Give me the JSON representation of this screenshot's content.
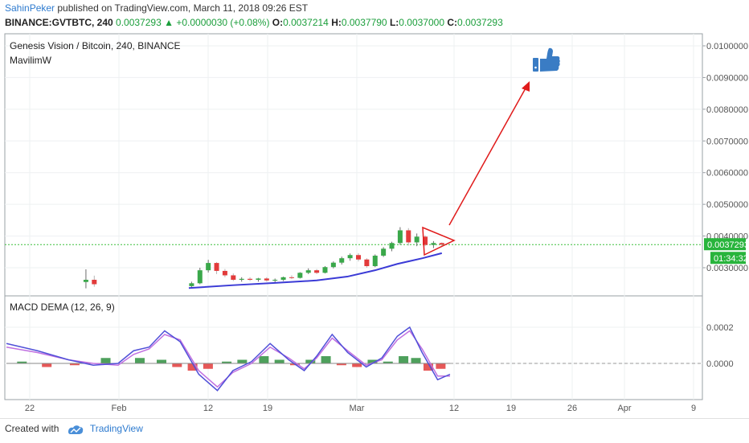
{
  "header": {
    "author": "SahinPeker",
    "published_text": " published on TradingView.com, March 11, 2018 09:26 EST"
  },
  "ticker": {
    "symbol": "BINANCE:GVTBTC, 240",
    "price": "0.0037293",
    "change": "+0.0000030 (+0.08%)",
    "o_label": "O:",
    "o": "0.0037214",
    "h_label": "H:",
    "h": "0.0037790",
    "l_label": "L:",
    "l": "0.0037000",
    "c_label": "C:",
    "c": "0.0037293"
  },
  "chart_data": {
    "type": "candlestick",
    "title": "Genesis Vision / Bitcoin, 240, BINANCE",
    "indicator": "MavilimW",
    "y_ticks": [
      "0.0100000",
      "0.0090000",
      "0.0080000",
      "0.0070000",
      "0.0060000",
      "0.0050000",
      "0.0040000",
      "0.0030000"
    ],
    "ylim": [
      0.0023,
      0.0102
    ],
    "x_ticks": [
      "22",
      "Feb",
      "12",
      "19",
      "Mar",
      "12",
      "19",
      "26",
      "Apr",
      "9"
    ],
    "last_price_label": "0.0037293",
    "countdown_label": "01:34:32",
    "close_series": [
      {
        "x": 0.2,
        "o": 0.00255,
        "h": 0.00295,
        "l": 0.00235,
        "c": 0.00262
      },
      {
        "x": 0.5,
        "o": 0.00262,
        "h": 0.00275,
        "l": 0.0024,
        "c": 0.00248
      },
      {
        "x": 4.0,
        "o": 0.00242,
        "h": 0.00256,
        "l": 0.00238,
        "c": 0.00251
      },
      {
        "x": 4.3,
        "o": 0.00251,
        "h": 0.003,
        "l": 0.00248,
        "c": 0.00292
      },
      {
        "x": 4.6,
        "o": 0.00292,
        "h": 0.00325,
        "l": 0.00285,
        "c": 0.00315
      },
      {
        "x": 4.9,
        "o": 0.00315,
        "h": 0.00318,
        "l": 0.0028,
        "c": 0.0029
      },
      {
        "x": 5.2,
        "o": 0.0029,
        "h": 0.00296,
        "l": 0.0027,
        "c": 0.00276
      },
      {
        "x": 5.5,
        "o": 0.00276,
        "h": 0.00282,
        "l": 0.00258,
        "c": 0.00262
      },
      {
        "x": 5.8,
        "o": 0.00262,
        "h": 0.0027,
        "l": 0.00256,
        "c": 0.00265
      },
      {
        "x": 6.1,
        "o": 0.00265,
        "h": 0.0027,
        "l": 0.00258,
        "c": 0.00262
      },
      {
        "x": 6.4,
        "o": 0.00262,
        "h": 0.00268,
        "l": 0.00256,
        "c": 0.00266
      },
      {
        "x": 6.7,
        "o": 0.00266,
        "h": 0.0027,
        "l": 0.00256,
        "c": 0.0026
      },
      {
        "x": 7.0,
        "o": 0.0026,
        "h": 0.00266,
        "l": 0.00254,
        "c": 0.00262
      },
      {
        "x": 7.3,
        "o": 0.00262,
        "h": 0.00272,
        "l": 0.00258,
        "c": 0.0027
      },
      {
        "x": 7.6,
        "o": 0.0027,
        "h": 0.00276,
        "l": 0.00264,
        "c": 0.00268
      },
      {
        "x": 7.9,
        "o": 0.00268,
        "h": 0.00286,
        "l": 0.00266,
        "c": 0.00284
      },
      {
        "x": 8.2,
        "o": 0.00284,
        "h": 0.00298,
        "l": 0.0028,
        "c": 0.00292
      },
      {
        "x": 8.5,
        "o": 0.00292,
        "h": 0.00296,
        "l": 0.0028,
        "c": 0.00284
      },
      {
        "x": 8.8,
        "o": 0.00284,
        "h": 0.00305,
        "l": 0.00282,
        "c": 0.00302
      },
      {
        "x": 9.1,
        "o": 0.00302,
        "h": 0.0032,
        "l": 0.00298,
        "c": 0.00316
      },
      {
        "x": 9.4,
        "o": 0.00316,
        "h": 0.00335,
        "l": 0.0031,
        "c": 0.0033
      },
      {
        "x": 9.7,
        "o": 0.0033,
        "h": 0.00345,
        "l": 0.00322,
        "c": 0.0034
      },
      {
        "x": 10.0,
        "o": 0.0034,
        "h": 0.00346,
        "l": 0.0032,
        "c": 0.00326
      },
      {
        "x": 10.3,
        "o": 0.00326,
        "h": 0.0033,
        "l": 0.003,
        "c": 0.00305
      },
      {
        "x": 10.6,
        "o": 0.00305,
        "h": 0.00342,
        "l": 0.00302,
        "c": 0.00338
      },
      {
        "x": 10.9,
        "o": 0.00338,
        "h": 0.00365,
        "l": 0.00334,
        "c": 0.0036
      },
      {
        "x": 11.2,
        "o": 0.0036,
        "h": 0.00382,
        "l": 0.00352,
        "c": 0.00378
      },
      {
        "x": 11.5,
        "o": 0.00378,
        "h": 0.00428,
        "l": 0.00372,
        "c": 0.00418
      },
      {
        "x": 11.8,
        "o": 0.00418,
        "h": 0.00425,
        "l": 0.0037,
        "c": 0.0038
      },
      {
        "x": 12.1,
        "o": 0.0038,
        "h": 0.00408,
        "l": 0.00368,
        "c": 0.00398
      },
      {
        "x": 12.4,
        "o": 0.00398,
        "h": 0.00402,
        "l": 0.00368,
        "c": 0.00372
      },
      {
        "x": 12.7,
        "o": 0.00372,
        "h": 0.00384,
        "l": 0.00362,
        "c": 0.00378
      },
      {
        "x": 13.0,
        "o": 0.00378,
        "h": 0.0038,
        "l": 0.00366,
        "c": 0.00373
      }
    ],
    "mavilimw": [
      [
        3.9,
        0.00236
      ],
      [
        5.5,
        0.00245
      ],
      [
        7.0,
        0.00252
      ],
      [
        8.5,
        0.0026
      ],
      [
        9.6,
        0.00272
      ],
      [
        10.6,
        0.00292
      ],
      [
        11.4,
        0.00312
      ],
      [
        12.3,
        0.0033
      ],
      [
        13.0,
        0.00346
      ]
    ],
    "macd": {
      "label": "MACD DEMA (12, 26, 9)",
      "y_ticks": [
        "0.0002",
        "0.0000"
      ],
      "ylim": [
        -0.000205,
        0.000295
      ],
      "macd_line": [
        [
          0.0,
          0.00011
        ],
        [
          1.0,
          7e-05
        ],
        [
          2.0,
          2e-05
        ],
        [
          2.8,
          -1e-05
        ],
        [
          3.6,
          0.0
        ],
        [
          4.1,
          7e-05
        ],
        [
          4.6,
          9e-05
        ],
        [
          5.1,
          0.00018
        ],
        [
          5.6,
          0.00012
        ],
        [
          6.2,
          -6e-05
        ],
        [
          6.8,
          -0.00015
        ],
        [
          7.3,
          -4e-05
        ],
        [
          7.9,
          1e-05
        ],
        [
          8.5,
          0.00011
        ],
        [
          9.1,
          2e-05
        ],
        [
          9.6,
          -4e-05
        ],
        [
          10.0,
          4e-05
        ],
        [
          10.5,
          0.00016
        ],
        [
          11.0,
          6e-05
        ],
        [
          11.6,
          -2e-05
        ],
        [
          12.1,
          3e-05
        ],
        [
          12.6,
          0.00015
        ],
        [
          13.0,
          0.0002
        ],
        [
          13.4,
          6e-05
        ],
        [
          13.9,
          -9e-05
        ],
        [
          14.3,
          -6e-05
        ]
      ],
      "signal_line": [
        [
          0.0,
          9e-05
        ],
        [
          1.0,
          6e-05
        ],
        [
          2.0,
          2e-05
        ],
        [
          2.8,
          0.0
        ],
        [
          3.6,
          -1e-05
        ],
        [
          4.1,
          5e-05
        ],
        [
          4.6,
          8e-05
        ],
        [
          5.1,
          0.00016
        ],
        [
          5.6,
          0.00013
        ],
        [
          6.2,
          -4e-05
        ],
        [
          6.8,
          -0.00013
        ],
        [
          7.3,
          -5e-05
        ],
        [
          7.9,
          0.0
        ],
        [
          8.5,
          9e-05
        ],
        [
          9.1,
          3e-05
        ],
        [
          9.6,
          -3e-05
        ],
        [
          10.0,
          3e-05
        ],
        [
          10.5,
          0.00014
        ],
        [
          11.0,
          7e-05
        ],
        [
          11.6,
          -1e-05
        ],
        [
          12.1,
          2e-05
        ],
        [
          12.6,
          0.00013
        ],
        [
          13.0,
          0.00018
        ],
        [
          13.4,
          8e-05
        ],
        [
          13.9,
          -7e-05
        ],
        [
          14.3,
          -7e-05
        ]
      ],
      "histogram": [
        [
          0.5,
          1e-05
        ],
        [
          1.3,
          -2e-05
        ],
        [
          2.2,
          -1e-05
        ],
        [
          3.2,
          3e-05
        ],
        [
          4.3,
          3e-05
        ],
        [
          5.0,
          2e-05
        ],
        [
          5.5,
          -2e-05
        ],
        [
          6.0,
          -4e-05
        ],
        [
          6.5,
          -3e-05
        ],
        [
          7.1,
          1e-05
        ],
        [
          7.6,
          2e-05
        ],
        [
          8.3,
          4e-05
        ],
        [
          8.8,
          2e-05
        ],
        [
          9.3,
          -1e-05
        ],
        [
          9.8,
          2e-05
        ],
        [
          10.3,
          4e-05
        ],
        [
          10.8,
          -1e-05
        ],
        [
          11.3,
          -2e-05
        ],
        [
          11.8,
          2e-05
        ],
        [
          12.3,
          1e-05
        ],
        [
          12.8,
          4e-05
        ],
        [
          13.2,
          3e-05
        ],
        [
          13.6,
          -4e-05
        ],
        [
          14.0,
          -3e-05
        ]
      ]
    }
  },
  "footer": {
    "created_with": "Created with",
    "brand": "TradingView"
  }
}
